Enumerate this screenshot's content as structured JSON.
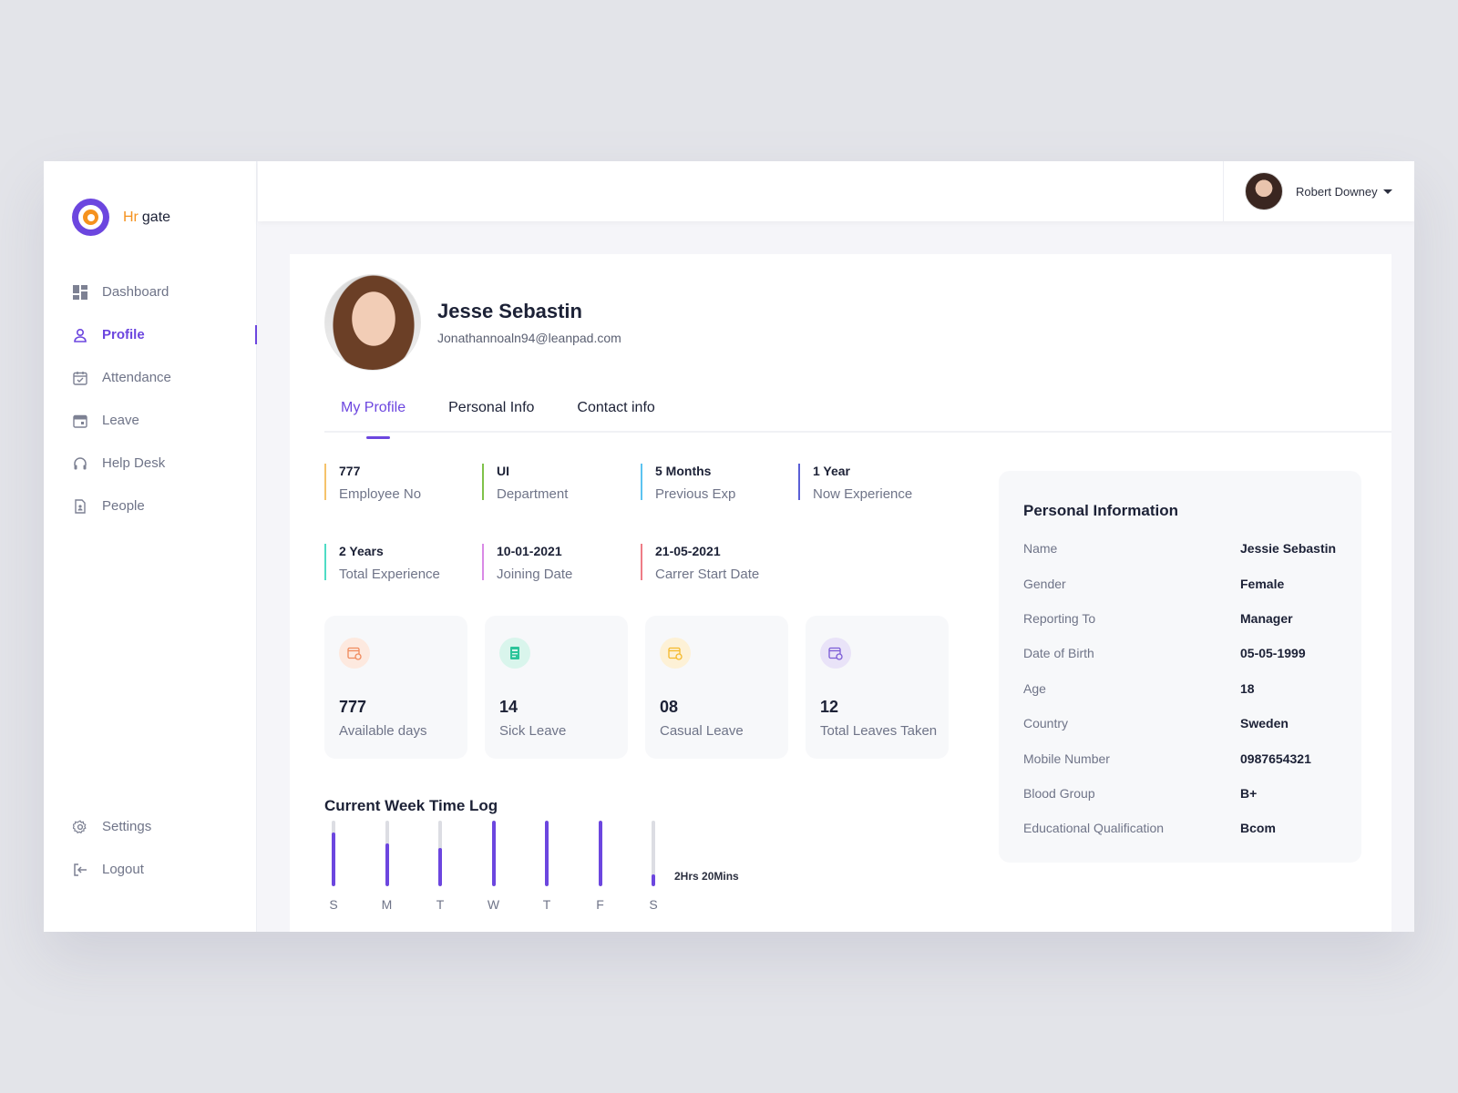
{
  "app": {
    "logo_prefix": "Hr",
    "logo_suffix": "gate"
  },
  "sidebar": {
    "items": [
      {
        "label": "Dashboard",
        "icon": "dashboard-icon",
        "active": false
      },
      {
        "label": "Profile",
        "icon": "user-icon",
        "active": true
      },
      {
        "label": "Attendance",
        "icon": "calendar-check-icon",
        "active": false
      },
      {
        "label": "Leave",
        "icon": "calendar-icon",
        "active": false
      },
      {
        "label": "Help Desk",
        "icon": "headphones-icon",
        "active": false
      },
      {
        "label": "People",
        "icon": "document-person-icon",
        "active": false
      }
    ],
    "bottom": [
      {
        "label": "Settings",
        "icon": "gear-icon"
      },
      {
        "label": "Logout",
        "icon": "logout-icon"
      }
    ]
  },
  "header": {
    "user_name": "Robert Downey"
  },
  "profile": {
    "name": "Jesse Sebastin",
    "email": "Jonathannoaln94@leanpad.com"
  },
  "tabs": [
    {
      "label": "My Profile",
      "active": true
    },
    {
      "label": "Personal Info",
      "active": false
    },
    {
      "label": "Contact info",
      "active": false
    }
  ],
  "stats": [
    {
      "value": "777",
      "label": "Employee No",
      "color": "#f5c26b"
    },
    {
      "value": "UI",
      "label": "Department",
      "color": "#7fc24a"
    },
    {
      "value": "5 Months",
      "label": "Previous Exp",
      "color": "#5cc3f0"
    },
    {
      "value": "1 Year",
      "label": "Now Experience",
      "color": "#5a5fd6"
    },
    {
      "value": "2 Years",
      "label": "Total Experience",
      "color": "#4fdcc5"
    },
    {
      "value": "10-01-2021",
      "label": "Joining Date",
      "color": "#d98ae6"
    },
    {
      "value": "21-05-2021",
      "label": "Carrer Start Date",
      "color": "#ee7c86"
    }
  ],
  "leave_cards": [
    {
      "value": "777",
      "label": "Available days",
      "icon": "calendar-clock-icon",
      "icon_color": "#f08a5d",
      "icon_bg": "#fde9df"
    },
    {
      "value": "14",
      "label": "Sick Leave",
      "icon": "medical-report-icon",
      "icon_color": "#2cc49a",
      "icon_bg": "#d9f5ec"
    },
    {
      "value": "08",
      "label": "Casual Leave",
      "icon": "calendar-clock-icon",
      "icon_color": "#f5b92b",
      "icon_bg": "#fdf1d6"
    },
    {
      "value": "12",
      "label": "Total Leaves Taken",
      "icon": "calendar-clock-icon",
      "icon_color": "#7b5bd6",
      "icon_bg": "#e9e3f8"
    }
  ],
  "timelog": {
    "title": "Current Week Time Log",
    "note": "2Hrs 20Mins",
    "days": [
      {
        "label": "S",
        "fill": 0.82
      },
      {
        "label": "M",
        "fill": 0.65
      },
      {
        "label": "T",
        "fill": 0.58
      },
      {
        "label": "W",
        "fill": 1.0
      },
      {
        "label": "T",
        "fill": 1.0
      },
      {
        "label": "F",
        "fill": 1.0
      },
      {
        "label": "S",
        "fill": 0.18
      }
    ]
  },
  "personal_info": {
    "title": "Personal Information",
    "rows": [
      {
        "key": "Name",
        "value": "Jessie Sebastin"
      },
      {
        "key": "Gender",
        "value": "Female"
      },
      {
        "key": "Reporting To",
        "value": "Manager"
      },
      {
        "key": "Date of Birth",
        "value": "05-05-1999"
      },
      {
        "key": "Age",
        "value": "18"
      },
      {
        "key": "Country",
        "value": "Sweden"
      },
      {
        "key": "Mobile Number",
        "value": "0987654321"
      },
      {
        "key": "Blood Group",
        "value": "B+"
      },
      {
        "key": "Educational Qualification",
        "value": "Bcom"
      }
    ]
  },
  "colors": {
    "accent": "#6c46df",
    "brand_orange": "#f5921f"
  }
}
